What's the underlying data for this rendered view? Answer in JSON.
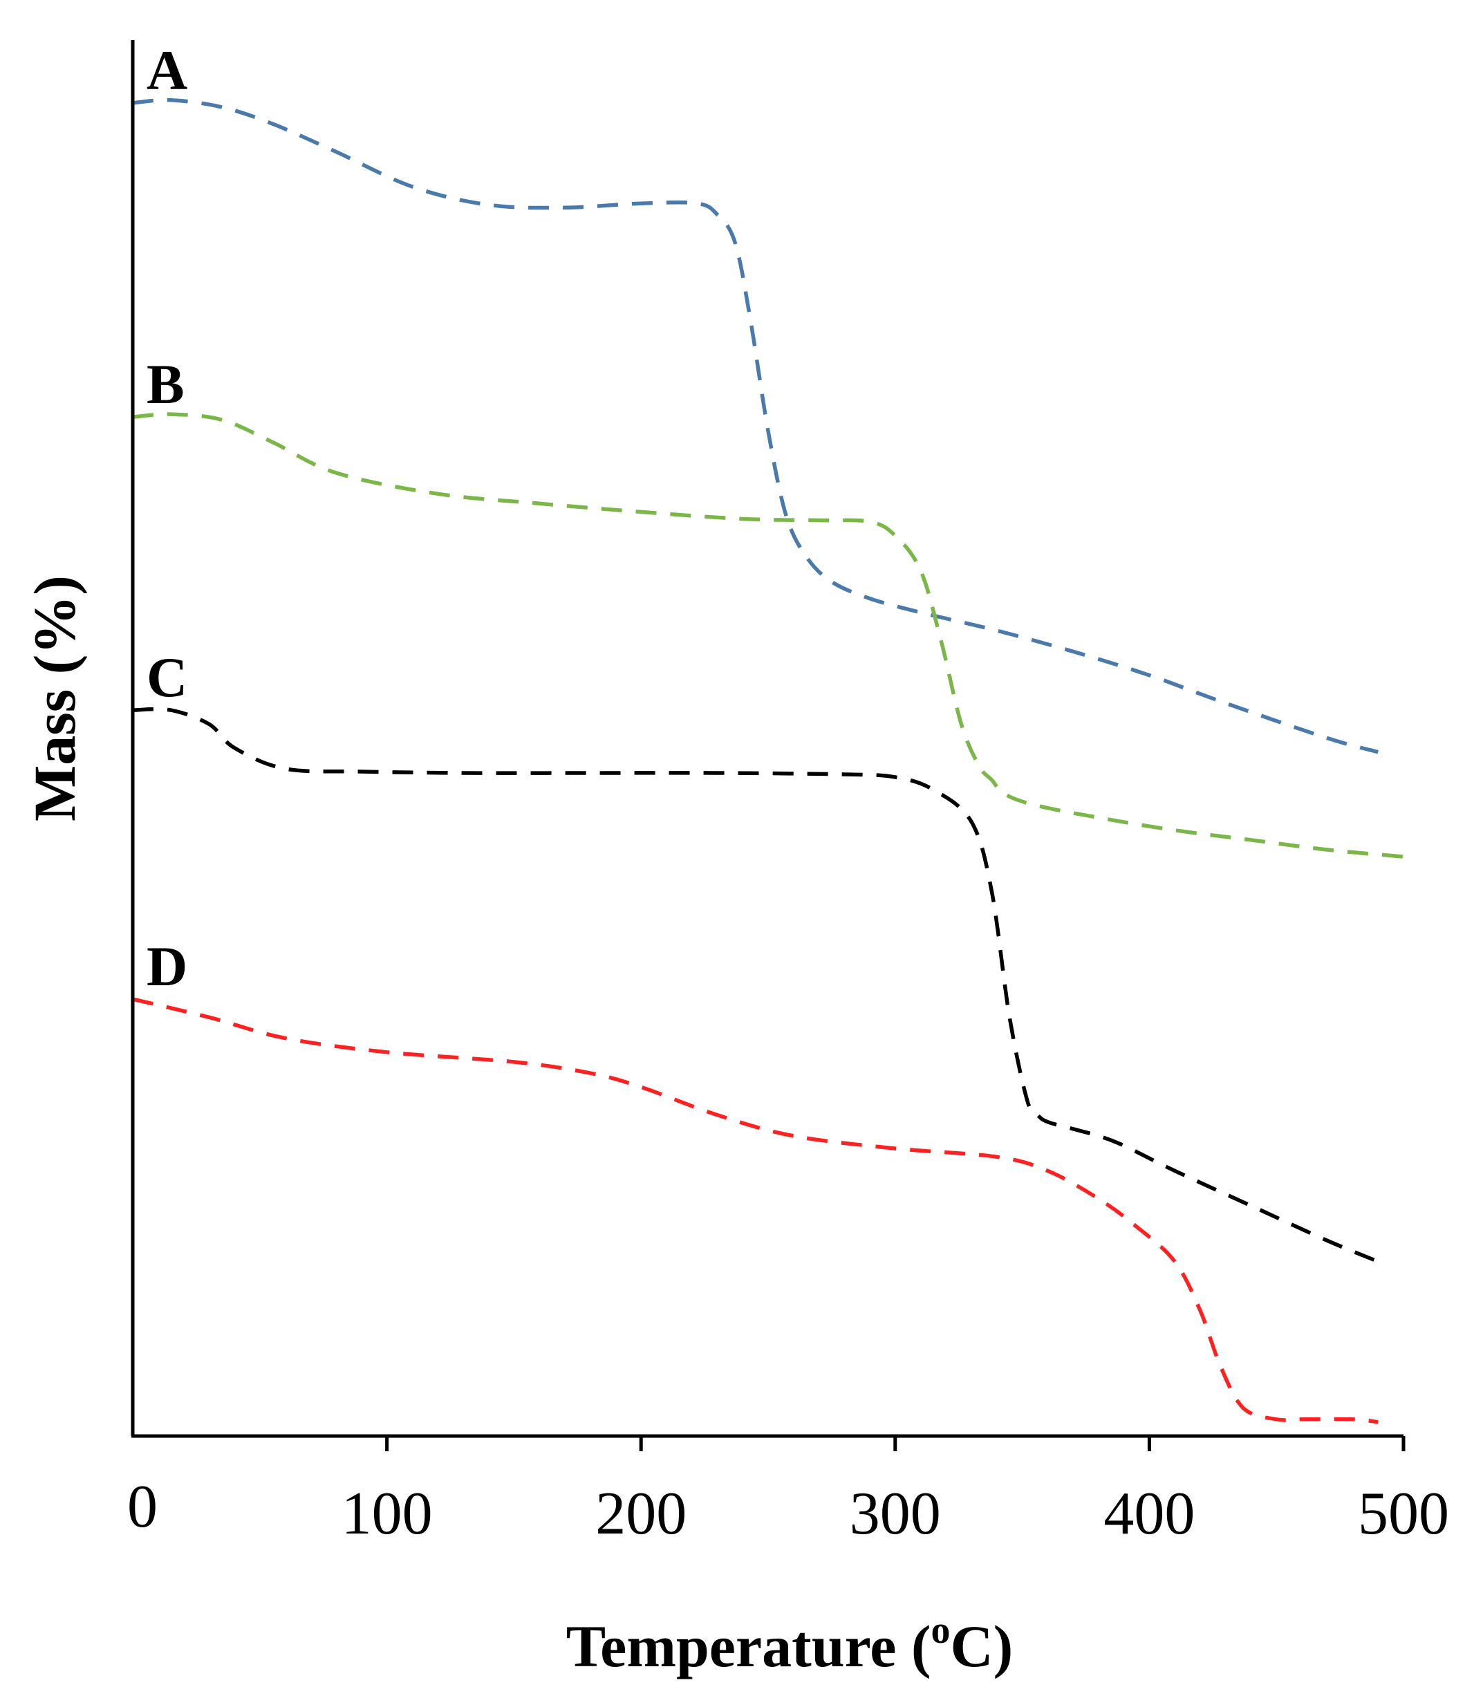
{
  "chart_data": {
    "type": "line",
    "xlabel": "Temperature (",
    "xlabel_superscript": "o",
    "xlabel_unit": "C)",
    "ylabel": "Mass (%)",
    "xlim": [
      0,
      500
    ],
    "x_ticks": [
      0,
      100,
      200,
      300,
      400,
      500
    ],
    "y_ticks_shown": false,
    "grid": false,
    "legend": "none",
    "y_note": "relative mass, no numeric y-scale printed; values as fraction of axis height (0 = x-axis, 1 = top of axis)",
    "series": [
      {
        "name": "A",
        "color": "#4a7aab",
        "x": [
          0,
          15,
          35,
          55,
          80,
          110,
          140,
          170,
          200,
          222,
          230,
          237,
          243,
          250,
          257,
          265,
          275,
          290,
          310,
          340,
          370,
          400,
          430,
          470,
          490
        ],
        "y": [
          0.955,
          0.957,
          0.952,
          0.94,
          0.92,
          0.895,
          0.882,
          0.88,
          0.883,
          0.883,
          0.875,
          0.855,
          0.8,
          0.72,
          0.66,
          0.63,
          0.612,
          0.6,
          0.59,
          0.577,
          0.562,
          0.545,
          0.525,
          0.5,
          0.49
        ]
      },
      {
        "name": "B",
        "color": "#7ab648",
        "x": [
          0,
          15,
          35,
          55,
          80,
          120,
          160,
          200,
          240,
          270,
          290,
          300,
          310,
          318,
          326,
          333,
          338,
          343,
          355,
          380,
          410,
          440,
          470,
          500
        ],
        "y": [
          0.73,
          0.732,
          0.728,
          0.712,
          0.69,
          0.675,
          0.668,
          0.662,
          0.657,
          0.656,
          0.655,
          0.645,
          0.62,
          0.57,
          0.51,
          0.48,
          0.47,
          0.46,
          0.452,
          0.443,
          0.434,
          0.427,
          0.42,
          0.415
        ]
      },
      {
        "name": "C",
        "color": "#000000",
        "x": [
          0,
          15,
          30,
          40,
          60,
          90,
          130,
          180,
          230,
          280,
          300,
          315,
          330,
          338,
          345,
          352,
          356,
          360,
          370,
          380,
          390,
          410,
          440,
          470,
          490
        ],
        "y": [
          0.52,
          0.52,
          0.51,
          0.493,
          0.478,
          0.476,
          0.475,
          0.475,
          0.475,
          0.474,
          0.472,
          0.463,
          0.44,
          0.39,
          0.3,
          0.24,
          0.23,
          0.225,
          0.22,
          0.215,
          0.208,
          0.19,
          0.165,
          0.14,
          0.125
        ]
      },
      {
        "name": "D",
        "color": "#ff2020",
        "x": [
          0,
          30,
          60,
          100,
          150,
          180,
          200,
          230,
          260,
          300,
          340,
          360,
          380,
          395,
          410,
          420,
          428,
          437,
          450,
          460,
          480,
          490
        ],
        "y": [
          0.313,
          0.3,
          0.285,
          0.275,
          0.268,
          0.26,
          0.25,
          0.23,
          0.215,
          0.206,
          0.2,
          0.19,
          0.17,
          0.15,
          0.125,
          0.09,
          0.05,
          0.02,
          0.012,
          0.012,
          0.012,
          0.01
        ]
      }
    ]
  }
}
